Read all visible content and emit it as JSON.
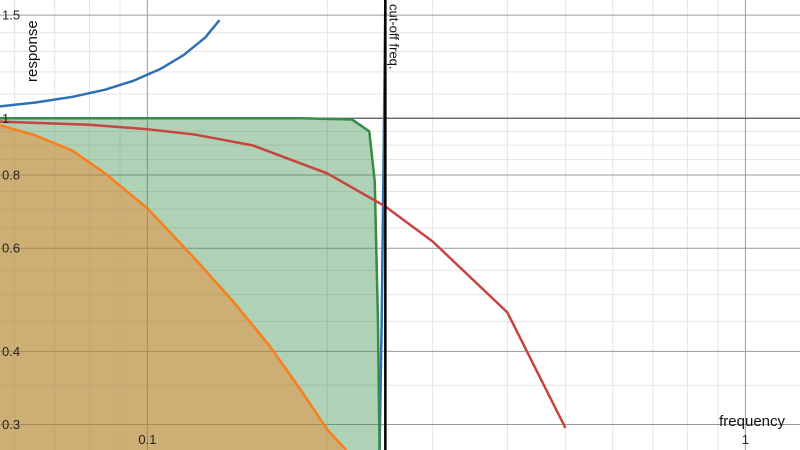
{
  "chart_data": {
    "type": "line",
    "title": "",
    "xlabel": "frequency",
    "ylabel": "response",
    "x_scale": "log",
    "y_scale": "log",
    "xlim": [
      0.0567,
      1.234
    ],
    "ylim": [
      0.2714,
      1.592
    ],
    "grid": true,
    "x_tick_labels": [
      {
        "value": 0.1,
        "label": "0.1"
      },
      {
        "value": 1,
        "label": "1"
      }
    ],
    "y_tick_labels": [
      {
        "value": 0.3,
        "label": "0.3"
      },
      {
        "value": 0.4,
        "label": "0.4"
      },
      {
        "value": 0.6,
        "label": "0.6"
      },
      {
        "value": 0.8,
        "label": "0.8"
      },
      {
        "value": 1,
        "label": "1"
      },
      {
        "value": 1.5,
        "label": "1.5"
      }
    ],
    "cutoff": {
      "x": 0.25,
      "label": "cut-off freq."
    },
    "series": [
      {
        "color": "#2d70b3",
        "style": "line",
        "x": [
          0.0567,
          0.065,
          0.075,
          0.085,
          0.095,
          0.105,
          0.115,
          0.125,
          0.132
        ],
        "y": [
          1.048,
          1.064,
          1.088,
          1.119,
          1.16,
          1.213,
          1.282,
          1.374,
          1.471
        ]
      },
      {
        "color": "#2d70b3",
        "style": "line",
        "x": [
          0.2445,
          0.2465,
          0.2485,
          0.25
        ],
        "y": [
          0.2714,
          0.45,
          0.9,
          1.592
        ]
      },
      {
        "color": "#388c46",
        "style": "area",
        "x": [
          0.0567,
          0.08,
          0.12,
          0.18,
          0.22,
          0.235,
          0.24,
          0.243,
          0.2445
        ],
        "y": [
          1.0,
          1.0,
          1.0,
          1.0,
          0.995,
          0.95,
          0.78,
          0.45,
          0.2714
        ]
      },
      {
        "color": "#c74440",
        "style": "line",
        "x": [
          0.0567,
          0.08,
          0.1,
          0.12,
          0.15,
          0.2,
          0.25,
          0.3,
          0.4,
          0.5
        ],
        "y": [
          0.987,
          0.975,
          0.958,
          0.938,
          0.899,
          0.805,
          0.707,
          0.616,
          0.466,
          0.296
        ]
      },
      {
        "color": "#fa7e19",
        "style": "area",
        "x": [
          0.0567,
          0.065,
          0.075,
          0.085,
          0.1,
          0.12,
          0.14,
          0.16,
          0.18,
          0.2,
          0.215
        ],
        "y": [
          0.973,
          0.935,
          0.88,
          0.805,
          0.702,
          0.576,
          0.483,
          0.409,
          0.345,
          0.294,
          0.2714
        ]
      }
    ]
  }
}
